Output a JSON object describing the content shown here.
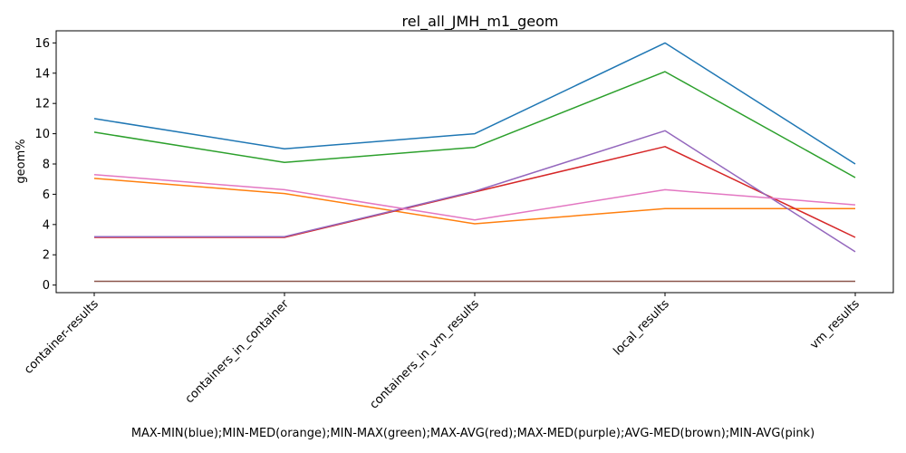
{
  "chart_data": {
    "type": "line",
    "title": "rel_all_JMH_m1_geom",
    "xlabel": "MAX-MIN(blue);MIN-MED(orange);MIN-MAX(green);MAX-AVG(red);MAX-MED(purple);AVG-MED(brown);MIN-AVG(pink)",
    "ylabel": "geom%",
    "categories": [
      "container-results",
      "containers_in_container",
      "containers_in_vm_results",
      "local_results",
      "vm_results"
    ],
    "ylim": [
      -0.5,
      16.8
    ],
    "yticks": [
      0,
      2,
      4,
      6,
      8,
      10,
      12,
      14,
      16
    ],
    "grid": false,
    "legend": "none",
    "series": [
      {
        "color": "#1f77b4",
        "values": [
          11.0,
          9.0,
          10.0,
          16.0,
          8.0
        ]
      },
      {
        "color": "#ff7f0e",
        "values": [
          7.05,
          6.05,
          4.05,
          5.05,
          5.05
        ]
      },
      {
        "color": "#2ca02c",
        "values": [
          10.1,
          8.1,
          9.1,
          14.1,
          7.1
        ]
      },
      {
        "color": "#d62728",
        "values": [
          3.15,
          3.15,
          6.15,
          9.15,
          3.15
        ]
      },
      {
        "color": "#9467bd",
        "values": [
          3.2,
          3.2,
          6.2,
          10.2,
          2.2
        ]
      },
      {
        "color": "#8c564b",
        "values": [
          0.25,
          0.25,
          0.25,
          0.25,
          0.25
        ]
      },
      {
        "color": "#e377c2",
        "values": [
          7.3,
          6.3,
          4.3,
          6.3,
          5.3
        ]
      }
    ]
  }
}
